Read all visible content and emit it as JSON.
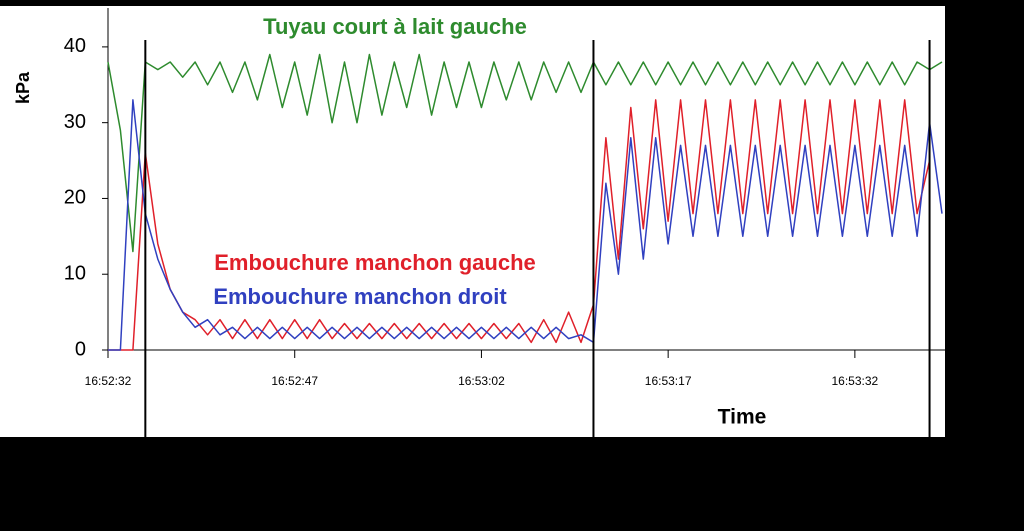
{
  "chart_data": {
    "type": "line",
    "x_label": "Time",
    "y_label": "kPa",
    "x": [
      "16:52:32",
      "16:52:33",
      "16:52:34",
      "16:52:35",
      "16:52:36",
      "16:52:37",
      "16:52:38",
      "16:52:39",
      "16:52:40",
      "16:52:41",
      "16:52:42",
      "16:52:43",
      "16:52:44",
      "16:52:45",
      "16:52:46",
      "16:52:47",
      "16:52:48",
      "16:52:49",
      "16:52:50",
      "16:52:51",
      "16:52:52",
      "16:52:53",
      "16:52:54",
      "16:52:55",
      "16:52:56",
      "16:52:57",
      "16:52:58",
      "16:52:59",
      "16:53:00",
      "16:53:01",
      "16:53:02",
      "16:53:03",
      "16:53:04",
      "16:53:05",
      "16:53:06",
      "16:53:07",
      "16:53:08",
      "16:53:09",
      "16:53:10",
      "16:53:11",
      "16:53:12",
      "16:53:13",
      "16:53:14",
      "16:53:15",
      "16:53:16",
      "16:53:17",
      "16:53:18",
      "16:53:19",
      "16:53:20",
      "16:53:21",
      "16:53:22",
      "16:53:23",
      "16:53:24",
      "16:53:25",
      "16:53:26",
      "16:53:27",
      "16:53:28",
      "16:53:29",
      "16:53:30",
      "16:53:31",
      "16:53:32",
      "16:53:33",
      "16:53:34",
      "16:53:35",
      "16:53:36",
      "16:53:37",
      "16:53:38",
      "16:53:39"
    ],
    "series": [
      {
        "name": "Tuyau court à lait gauche",
        "color": "#2e8b2e",
        "values": [
          38,
          29,
          13,
          38,
          37,
          38,
          36,
          38,
          35,
          38,
          34,
          38,
          33,
          39,
          32,
          38,
          31,
          39,
          30,
          38,
          30,
          39,
          31,
          38,
          32,
          39,
          31,
          38,
          32,
          38,
          32,
          38,
          33,
          38,
          33,
          38,
          34,
          38,
          34,
          38,
          35,
          38,
          35,
          38,
          35,
          38,
          35,
          38,
          35,
          38,
          35,
          38,
          35,
          38,
          35,
          38,
          35,
          38,
          35,
          38,
          35,
          38,
          35,
          38,
          35,
          38,
          37,
          38
        ]
      },
      {
        "name": "Embouchure manchon gauche",
        "color": "#e0202a",
        "values": [
          0,
          0,
          0,
          26,
          14,
          8,
          5,
          4,
          2,
          4,
          1.5,
          4,
          1.5,
          4,
          1.5,
          4,
          1.5,
          4,
          1.5,
          3.5,
          1.5,
          3.5,
          1.5,
          3.5,
          1.5,
          3.5,
          1.5,
          3.5,
          1.5,
          3.5,
          1.5,
          3.5,
          1.5,
          3.5,
          1,
          4,
          1,
          5,
          1,
          6,
          28,
          12,
          32,
          16,
          33,
          17,
          33,
          18,
          33,
          18,
          33,
          18,
          33,
          18,
          33,
          18,
          33,
          18,
          33,
          18,
          33,
          18,
          33,
          18,
          33,
          18,
          25,
          null
        ]
      },
      {
        "name": "Embouchure manchon droit",
        "color": "#3040c0",
        "values": [
          0,
          0,
          33,
          18,
          12,
          8,
          5,
          3,
          4,
          2,
          3,
          1.5,
          3,
          1.5,
          3,
          1.5,
          3,
          1.5,
          3,
          1.5,
          3,
          1.5,
          3,
          1.5,
          3,
          1.5,
          3,
          1.5,
          3,
          1.5,
          3,
          1.5,
          3,
          1.5,
          3,
          1.5,
          3,
          1.5,
          2,
          1,
          22,
          10,
          28,
          12,
          28,
          14,
          27,
          15,
          27,
          15,
          27,
          15,
          27,
          15,
          27,
          15,
          27,
          15,
          27,
          15,
          27,
          15,
          27,
          15,
          27,
          15,
          30,
          18
        ]
      }
    ],
    "vlines": [
      "16:52:35",
      "16:53:11",
      "16:53:38"
    ],
    "xlim": [
      "16:52:32",
      "16:53:39"
    ],
    "xticks": [
      "16:52:32",
      "16:52:47",
      "16:53:02",
      "16:53:17",
      "16:53:32"
    ],
    "ylim": [
      0,
      45
    ],
    "yticks": [
      0,
      10,
      20,
      30,
      40
    ]
  }
}
